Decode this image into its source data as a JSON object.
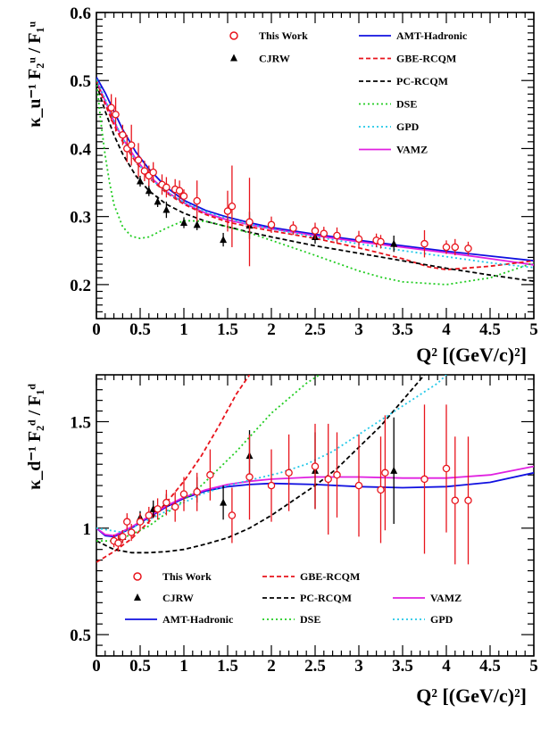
{
  "chart_data": [
    {
      "type": "line",
      "xlabel": "Q² [(GeV/c)²]",
      "ylabel": "κ_u⁻¹ F₂ᵘ / F₁ᵘ",
      "xlim": [
        0,
        5
      ],
      "ylim": [
        0.15,
        0.6
      ],
      "xticks": [
        "0",
        "0.5",
        "1",
        "1.5",
        "2",
        "2.5",
        "3",
        "3.5",
        "4",
        "4.5",
        "5"
      ],
      "yticks": [
        "0.2",
        "0.3",
        "0.4",
        "0.5",
        "0.6"
      ],
      "legend_position": "top-right",
      "legend": [
        {
          "name": "This Work",
          "marker": "open-circle",
          "color": "#e8141c"
        },
        {
          "name": "AMT-Hadronic",
          "style": "solid",
          "color": "#1010e0"
        },
        {
          "name": "CJRW",
          "marker": "filled-triangle",
          "color": "#000000"
        },
        {
          "name": "GBE-RCQM",
          "style": "dashed",
          "color": "#e8141c"
        },
        {
          "name": "PC-RCQM",
          "style": "dashed",
          "color": "#000000"
        },
        {
          "name": "DSE",
          "style": "dotted",
          "color": "#22cc22"
        },
        {
          "name": "GPD",
          "style": "dotted",
          "color": "#22c8e8"
        },
        {
          "name": "VAMZ",
          "style": "solid",
          "color": "#e020e0"
        }
      ],
      "curves": [
        {
          "name": "AMT-Hadronic",
          "color": "#1010e0",
          "dash": "",
          "x": [
            0,
            0.1,
            0.2,
            0.3,
            0.45,
            0.6,
            0.8,
            1,
            1.25,
            1.5,
            1.75,
            2,
            2.5,
            3,
            3.5,
            4,
            4.5,
            5
          ],
          "y": [
            0.505,
            0.482,
            0.455,
            0.428,
            0.395,
            0.37,
            0.343,
            0.324,
            0.309,
            0.299,
            0.291,
            0.284,
            0.274,
            0.265,
            0.257,
            0.249,
            0.242,
            0.235
          ]
        },
        {
          "name": "VAMZ",
          "color": "#e020e0",
          "dash": "",
          "x": [
            0,
            0.1,
            0.2,
            0.3,
            0.45,
            0.6,
            0.8,
            1,
            1.25,
            1.5,
            1.75,
            2,
            2.5,
            3,
            3.5,
            4,
            4.5,
            5
          ],
          "y": [
            0.5,
            0.47,
            0.44,
            0.415,
            0.385,
            0.36,
            0.337,
            0.32,
            0.305,
            0.295,
            0.288,
            0.282,
            0.272,
            0.263,
            0.255,
            0.247,
            0.238,
            0.229
          ]
        },
        {
          "name": "GBE-RCQM",
          "color": "#e8141c",
          "dash": "5,3",
          "x": [
            0,
            0.1,
            0.2,
            0.3,
            0.45,
            0.6,
            0.8,
            1,
            1.25,
            1.5,
            1.75,
            2,
            2.5,
            3,
            3.5,
            3.8,
            4,
            4.5,
            5
          ],
          "y": [
            0.5,
            0.465,
            0.435,
            0.41,
            0.38,
            0.357,
            0.335,
            0.318,
            0.303,
            0.292,
            0.285,
            0.279,
            0.268,
            0.254,
            0.238,
            0.226,
            0.222,
            0.227,
            0.235
          ]
        },
        {
          "name": "PC-RCQM",
          "color": "#000000",
          "dash": "5,3",
          "x": [
            0,
            0.1,
            0.2,
            0.3,
            0.45,
            0.6,
            0.8,
            1,
            1.25,
            1.5,
            1.75,
            2,
            2.5,
            3,
            3.5,
            4,
            4.5,
            5
          ],
          "y": [
            0.495,
            0.455,
            0.42,
            0.392,
            0.36,
            0.338,
            0.318,
            0.305,
            0.293,
            0.285,
            0.277,
            0.27,
            0.257,
            0.246,
            0.235,
            0.224,
            0.214,
            0.205
          ]
        },
        {
          "name": "DSE",
          "color": "#22cc22",
          "dash": "2,3",
          "x": [
            0,
            0.05,
            0.1,
            0.15,
            0.2,
            0.3,
            0.4,
            0.5,
            0.6,
            0.8,
            1,
            1.25,
            1.5,
            1.75,
            2,
            2.5,
            3,
            3.25,
            3.5,
            4,
            4.5,
            5
          ],
          "y": [
            0.5,
            0.44,
            0.39,
            0.35,
            0.318,
            0.285,
            0.271,
            0.268,
            0.27,
            0.283,
            0.294,
            0.293,
            0.285,
            0.276,
            0.265,
            0.243,
            0.22,
            0.211,
            0.204,
            0.2,
            0.21,
            0.232
          ]
        },
        {
          "name": "GPD",
          "color": "#22c8e8",
          "dash": "2,3",
          "x": [
            0,
            0.1,
            0.2,
            0.3,
            0.45,
            0.6,
            0.8,
            1,
            1.25,
            1.5,
            1.75,
            2,
            2.5,
            3,
            3.5,
            4,
            4.5,
            5
          ],
          "y": [
            0.502,
            0.473,
            0.442,
            0.415,
            0.382,
            0.358,
            0.336,
            0.321,
            0.307,
            0.297,
            0.289,
            0.282,
            0.27,
            0.26,
            0.25,
            0.241,
            0.232,
            0.225
          ]
        }
      ],
      "this_work": {
        "x": [
          0.17,
          0.22,
          0.3,
          0.35,
          0.4,
          0.48,
          0.55,
          0.6,
          0.65,
          0.75,
          0.8,
          0.9,
          0.95,
          1.0,
          1.15,
          1.5,
          1.55,
          1.75,
          2.0,
          2.25,
          2.5,
          2.6,
          2.75,
          3.0,
          3.2,
          3.25,
          3.75,
          4.0,
          4.1,
          4.25
        ],
        "y": [
          0.46,
          0.45,
          0.42,
          0.4,
          0.405,
          0.383,
          0.367,
          0.36,
          0.365,
          0.347,
          0.343,
          0.34,
          0.338,
          0.33,
          0.323,
          0.308,
          0.315,
          0.292,
          0.288,
          0.283,
          0.279,
          0.275,
          0.272,
          0.267,
          0.265,
          0.263,
          0.26,
          0.255,
          0.255,
          0.253
        ],
        "err": [
          0.02,
          0.025,
          0.015,
          0.02,
          0.03,
          0.025,
          0.015,
          0.015,
          0.015,
          0.015,
          0.015,
          0.015,
          0.015,
          0.01,
          0.03,
          0.03,
          0.06,
          0.065,
          0.012,
          0.01,
          0.012,
          0.01,
          0.012,
          0.012,
          0.01,
          0.01,
          0.02,
          0.01,
          0.012,
          0.01
        ]
      },
      "cjrw": {
        "x": [
          0.5,
          0.6,
          0.7,
          0.8,
          1.0,
          1.15,
          1.45,
          1.75,
          2.5,
          3.4
        ],
        "y": [
          0.352,
          0.338,
          0.322,
          0.31,
          0.291,
          0.288,
          0.266,
          0.287,
          0.27,
          0.26
        ],
        "err": [
          0.008,
          0.008,
          0.008,
          0.012,
          0.008,
          0.008,
          0.01,
          0.02,
          0.01,
          0.012
        ]
      }
    },
    {
      "type": "line",
      "xlabel": "Q² [(GeV/c)²]",
      "ylabel": "κ_d⁻¹ F₂ᵈ / F₁ᵈ",
      "xlim": [
        0,
        5
      ],
      "ylim": [
        0.4,
        1.72
      ],
      "xticks": [
        "0",
        "0.5",
        "1",
        "1.5",
        "2",
        "2.5",
        "3",
        "3.5",
        "4",
        "4.5",
        "5"
      ],
      "yticks": [
        "0.5",
        "1",
        "1.5"
      ],
      "legend_position": "bottom",
      "legend": [
        {
          "name": "This Work",
          "marker": "open-circle",
          "color": "#e8141c"
        },
        {
          "name": "GBE-RCQM",
          "style": "dashed",
          "color": "#e8141c"
        },
        {
          "name": "CJRW",
          "marker": "filled-triangle",
          "color": "#000000"
        },
        {
          "name": "PC-RCQM",
          "style": "dashed",
          "color": "#000000"
        },
        {
          "name": "VAMZ",
          "style": "solid",
          "color": "#e020e0"
        },
        {
          "name": "AMT-Hadronic",
          "style": "solid",
          "color": "#1010e0"
        },
        {
          "name": "DSE",
          "style": "dotted",
          "color": "#22cc22"
        },
        {
          "name": "GPD",
          "style": "dotted",
          "color": "#22c8e8"
        }
      ],
      "curves": [
        {
          "name": "AMT-Hadronic",
          "color": "#1010e0",
          "dash": "",
          "x": [
            0,
            0.1,
            0.2,
            0.3,
            0.4,
            0.6,
            0.8,
            1,
            1.25,
            1.5,
            1.75,
            2,
            2.5,
            3,
            3.5,
            4,
            4.5,
            5
          ],
          "y": [
            1.0,
            0.965,
            0.96,
            0.98,
            1.0,
            1.05,
            1.1,
            1.14,
            1.175,
            1.195,
            1.205,
            1.21,
            1.205,
            1.195,
            1.19,
            1.195,
            1.215,
            1.26
          ]
        },
        {
          "name": "VAMZ",
          "color": "#e020e0",
          "dash": "",
          "x": [
            0,
            0.1,
            0.2,
            0.3,
            0.4,
            0.6,
            0.8,
            1,
            1.25,
            1.5,
            1.75,
            2,
            2.5,
            3,
            3.5,
            4,
            4.5,
            5
          ],
          "y": [
            1.0,
            0.97,
            0.965,
            0.985,
            1.005,
            1.055,
            1.105,
            1.145,
            1.18,
            1.205,
            1.22,
            1.23,
            1.24,
            1.24,
            1.235,
            1.235,
            1.25,
            1.29
          ]
        },
        {
          "name": "GBE-RCQM",
          "color": "#e8141c",
          "dash": "5,3",
          "x": [
            0,
            0.2,
            0.4,
            0.6,
            0.8,
            1,
            1.2,
            1.4,
            1.6,
            1.75
          ],
          "y": [
            0.84,
            0.89,
            0.95,
            1.03,
            1.12,
            1.22,
            1.34,
            1.48,
            1.63,
            1.72
          ]
        },
        {
          "name": "PC-RCQM",
          "color": "#000000",
          "dash": "5,3",
          "x": [
            0,
            0.2,
            0.4,
            0.6,
            0.8,
            1,
            1.25,
            1.5,
            1.75,
            2,
            2.25,
            2.5,
            2.75,
            3,
            3.25,
            3.5,
            3.75
          ],
          "y": [
            0.94,
            0.9,
            0.885,
            0.885,
            0.89,
            0.9,
            0.925,
            0.955,
            1.0,
            1.06,
            1.13,
            1.2,
            1.28,
            1.38,
            1.48,
            1.6,
            1.72
          ]
        },
        {
          "name": "DSE",
          "color": "#22cc22",
          "dash": "2,3",
          "x": [
            0,
            0.2,
            0.4,
            0.6,
            0.8,
            1,
            1.2,
            1.4,
            1.6,
            1.8,
            2.0,
            2.2,
            2.4,
            2.55
          ],
          "y": [
            0.94,
            0.94,
            0.97,
            1.01,
            1.07,
            1.13,
            1.2,
            1.28,
            1.36,
            1.45,
            1.54,
            1.61,
            1.68,
            1.72
          ]
        },
        {
          "name": "GPD",
          "color": "#22c8e8",
          "dash": "2,3",
          "x": [
            0,
            0.3,
            0.6,
            0.9,
            1.2,
            1.5,
            1.8,
            2.1,
            2.4,
            2.7,
            3,
            3.3,
            3.6,
            3.9,
            4.0
          ],
          "y": [
            1.0,
            0.98,
            1.04,
            1.1,
            1.16,
            1.2,
            1.23,
            1.26,
            1.3,
            1.36,
            1.44,
            1.52,
            1.6,
            1.68,
            1.72
          ]
        }
      ],
      "this_work": {
        "x": [
          0.2,
          0.25,
          0.3,
          0.35,
          0.4,
          0.5,
          0.6,
          0.7,
          0.8,
          0.9,
          1.0,
          1.15,
          1.3,
          1.55,
          1.75,
          2.0,
          2.2,
          2.5,
          2.65,
          2.75,
          3.0,
          3.25,
          3.3,
          3.75,
          4.0,
          4.1,
          4.25
        ],
        "y": [
          0.94,
          0.93,
          0.96,
          1.03,
          0.98,
          1.03,
          1.06,
          1.09,
          1.12,
          1.1,
          1.16,
          1.17,
          1.25,
          1.06,
          1.24,
          1.2,
          1.26,
          1.29,
          1.23,
          1.25,
          1.2,
          1.18,
          1.26,
          1.23,
          1.28,
          1.13,
          1.13
        ],
        "err": [
          0.03,
          0.04,
          0.03,
          0.04,
          0.04,
          0.04,
          0.04,
          0.05,
          0.06,
          0.07,
          0.08,
          0.09,
          0.12,
          0.13,
          0.2,
          0.17,
          0.18,
          0.2,
          0.26,
          0.2,
          0.24,
          0.25,
          0.27,
          0.35,
          0.3,
          0.3,
          0.3
        ]
      },
      "cjrw": {
        "x": [
          0.3,
          0.5,
          0.65,
          0.8,
          1.15,
          1.45,
          1.75,
          2.5,
          3.4
        ],
        "y": [
          0.96,
          1.05,
          1.09,
          1.12,
          1.18,
          1.12,
          1.34,
          1.27,
          1.27
        ],
        "err": [
          0.03,
          0.03,
          0.04,
          0.04,
          0.06,
          0.08,
          0.12,
          0.18,
          0.25
        ]
      }
    }
  ]
}
